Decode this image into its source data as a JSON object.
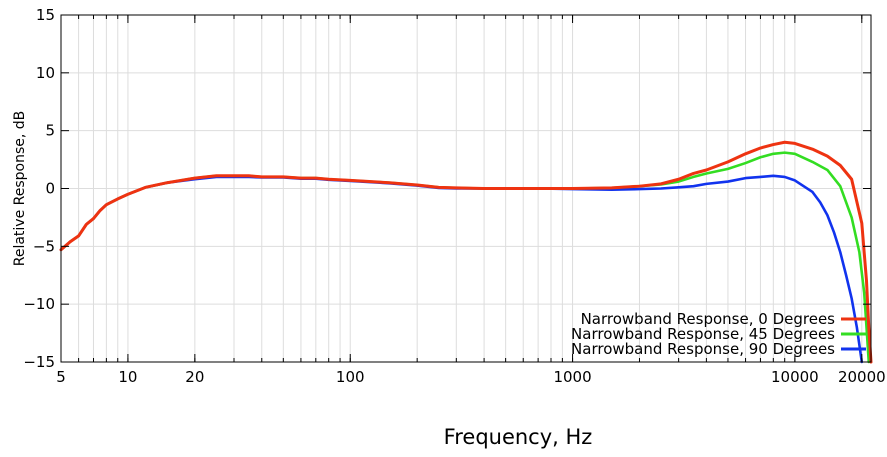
{
  "chart_data": {
    "type": "line",
    "title": "",
    "xlabel": "Frequency, Hz",
    "ylabel": "Relative Response, dB",
    "x_scale": "log",
    "xlim": [
      5,
      22000
    ],
    "ylim": [
      -15,
      15
    ],
    "grid": true,
    "legend_position": "bottom-right",
    "x_ticks": [
      5,
      10,
      20,
      100,
      1000,
      10000,
      20000
    ],
    "x_tick_labels": [
      "5",
      "10",
      "20",
      "100",
      "1000",
      "10000",
      "20000"
    ],
    "y_ticks": [
      -15,
      -10,
      -5,
      0,
      5,
      10,
      15
    ],
    "y_tick_labels": [
      "−15",
      "−10",
      "−5",
      "0",
      "5",
      "10",
      "15"
    ],
    "series": [
      {
        "name": "Narrowband Response, 0 Degrees",
        "color": "#ee3311",
        "x": [
          5,
          5.5,
          6,
          6.5,
          7,
          7.5,
          8,
          9,
          10,
          12,
          15,
          20,
          25,
          30,
          35,
          40,
          50,
          60,
          70,
          80,
          100,
          150,
          200,
          250,
          300,
          400,
          500,
          700,
          1000,
          1500,
          2000,
          2500,
          3000,
          3500,
          4000,
          5000,
          6000,
          7000,
          8000,
          9000,
          10000,
          12000,
          14000,
          16000,
          18000,
          20000,
          21000,
          21500,
          22000
        ],
        "y": [
          -5.3,
          -4.6,
          -4.1,
          -3.1,
          -2.6,
          -1.9,
          -1.4,
          -0.9,
          -0.5,
          0.1,
          0.5,
          0.9,
          1.1,
          1.1,
          1.1,
          1.0,
          1.0,
          0.9,
          0.9,
          0.8,
          0.7,
          0.5,
          0.3,
          0.1,
          0.05,
          0.0,
          0.0,
          0.0,
          0.0,
          0.05,
          0.2,
          0.4,
          0.8,
          1.3,
          1.6,
          2.3,
          3.0,
          3.5,
          3.8,
          4.0,
          3.9,
          3.4,
          2.8,
          2.0,
          0.8,
          -3.0,
          -8.0,
          -12.0,
          -15.0
        ]
      },
      {
        "name": "Narrowband Response, 45 Degrees",
        "color": "#33dd22",
        "x": [
          5,
          5.5,
          6,
          6.5,
          7,
          7.5,
          8,
          9,
          10,
          12,
          15,
          20,
          25,
          30,
          35,
          40,
          50,
          60,
          70,
          80,
          100,
          150,
          200,
          250,
          300,
          400,
          500,
          700,
          1000,
          1500,
          2000,
          2500,
          3000,
          3500,
          4000,
          5000,
          6000,
          7000,
          8000,
          9000,
          10000,
          12000,
          14000,
          16000,
          18000,
          19500,
          20500,
          21000,
          21500
        ],
        "y": [
          -5.3,
          -4.6,
          -4.1,
          -3.1,
          -2.6,
          -1.9,
          -1.4,
          -0.9,
          -0.5,
          0.1,
          0.5,
          0.9,
          1.1,
          1.1,
          1.1,
          1.0,
          1.0,
          0.9,
          0.9,
          0.8,
          0.7,
          0.5,
          0.3,
          0.1,
          0.05,
          0.0,
          0.0,
          0.0,
          0.0,
          0.05,
          0.2,
          0.35,
          0.6,
          1.0,
          1.3,
          1.7,
          2.2,
          2.7,
          3.0,
          3.1,
          3.0,
          2.3,
          1.6,
          0.2,
          -2.5,
          -5.5,
          -9.0,
          -12.0,
          -15.0
        ]
      },
      {
        "name": "Narrowband Response, 90 Degrees",
        "color": "#1133ee",
        "x": [
          5,
          5.5,
          6,
          6.5,
          7,
          7.5,
          8,
          9,
          10,
          12,
          15,
          20,
          25,
          30,
          35,
          40,
          50,
          60,
          70,
          80,
          100,
          150,
          200,
          250,
          300,
          400,
          500,
          700,
          1000,
          1500,
          2000,
          2500,
          3000,
          3500,
          4000,
          5000,
          6000,
          7000,
          8000,
          9000,
          10000,
          12000,
          13000,
          14000,
          15000,
          16000,
          17000,
          18000,
          19000,
          20000
        ],
        "y": [
          -5.3,
          -4.6,
          -4.1,
          -3.1,
          -2.6,
          -1.9,
          -1.4,
          -0.9,
          -0.5,
          0.1,
          0.5,
          0.8,
          1.0,
          1.0,
          1.0,
          0.95,
          0.95,
          0.85,
          0.85,
          0.75,
          0.65,
          0.45,
          0.25,
          0.05,
          0.0,
          0.0,
          0.0,
          0.0,
          -0.05,
          -0.1,
          -0.05,
          0.0,
          0.1,
          0.2,
          0.4,
          0.6,
          0.9,
          1.0,
          1.1,
          1.0,
          0.7,
          -0.3,
          -1.2,
          -2.3,
          -3.8,
          -5.5,
          -7.5,
          -9.5,
          -12.0,
          -15.0
        ]
      }
    ]
  }
}
